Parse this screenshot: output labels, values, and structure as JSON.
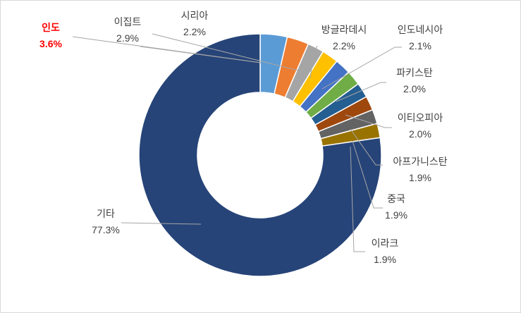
{
  "chart_data": {
    "type": "pie",
    "variant": "donut",
    "title": "",
    "slices": [
      {
        "label": "인도",
        "value": 3.6,
        "value_label": "3.6%",
        "color": "#5b9bd5",
        "highlight": true
      },
      {
        "label": "이집트",
        "value": 2.9,
        "value_label": "2.9%",
        "color": "#ed7d31"
      },
      {
        "label": "시리아",
        "value": 2.2,
        "value_label": "2.2%",
        "color": "#a5a5a5"
      },
      {
        "label": "방글라데시",
        "value": 2.2,
        "value_label": "2.2%",
        "color": "#ffc000"
      },
      {
        "label": "인도네시아",
        "value": 2.1,
        "value_label": "2.1%",
        "color": "#4472c4"
      },
      {
        "label": "파키스탄",
        "value": 2.0,
        "value_label": "2.0%",
        "color": "#70ad47"
      },
      {
        "label": "이티오피아",
        "value": 2.0,
        "value_label": "2.0%",
        "color": "#255e91"
      },
      {
        "label": "아프가니스탄",
        "value": 1.9,
        "value_label": "1.9%",
        "color": "#9e480e"
      },
      {
        "label": "중국",
        "value": 1.9,
        "value_label": "1.9%",
        "color": "#636363"
      },
      {
        "label": "이라크",
        "value": 1.9,
        "value_label": "1.9%",
        "color": "#997300"
      },
      {
        "label": "기타",
        "value": 77.3,
        "value_label": "77.3%",
        "color": "#264478"
      }
    ],
    "highlight_color": "#ff0000",
    "label_color": "#404040",
    "leader_color": "#a6a6a6"
  }
}
